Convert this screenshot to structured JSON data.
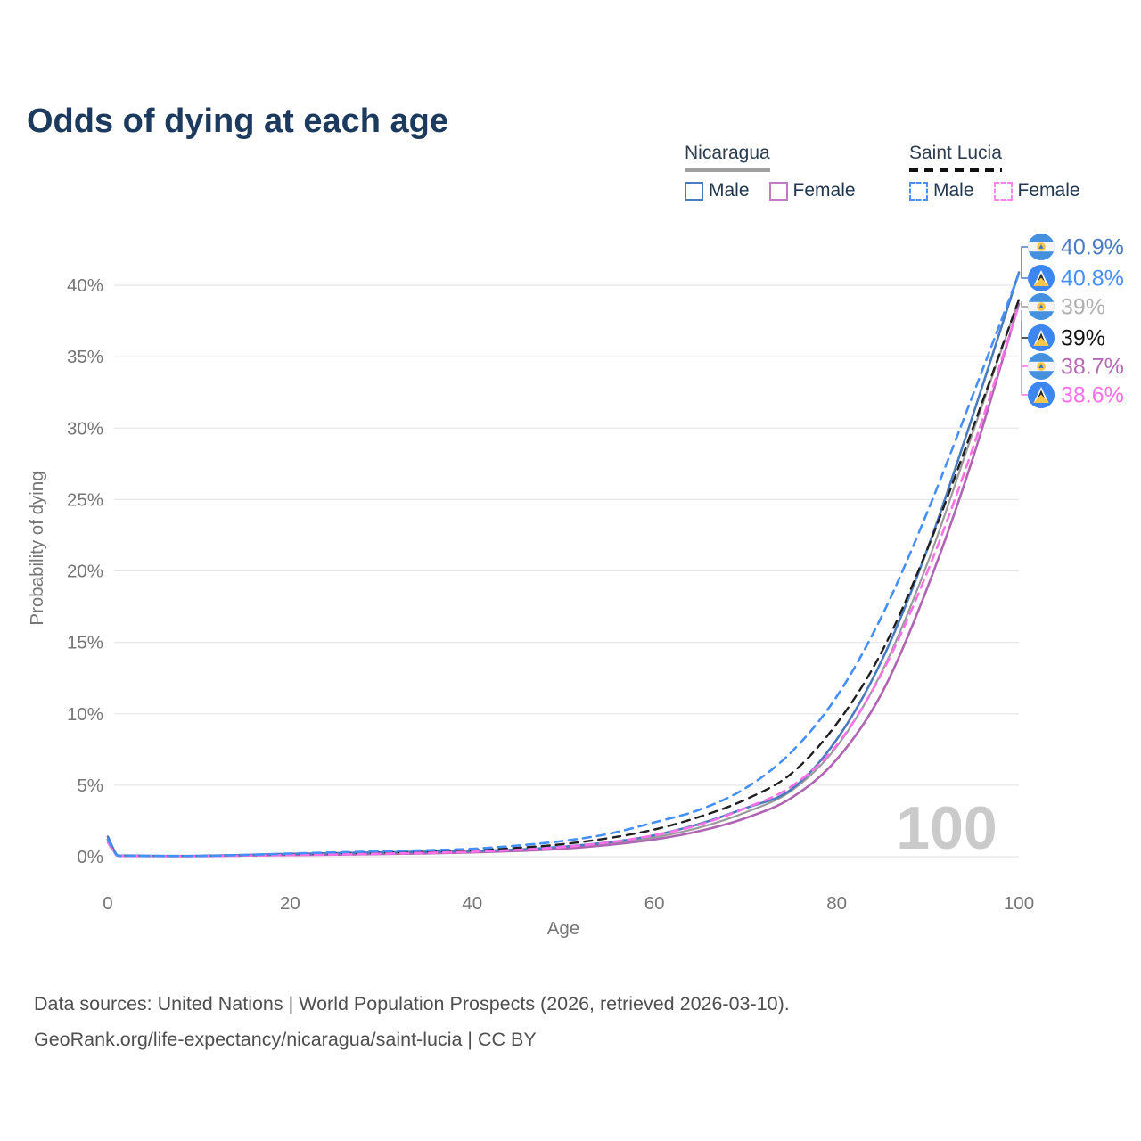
{
  "title": "Odds of dying at each age",
  "legend": {
    "groups": [
      {
        "label": "Nicaragua",
        "underline_style": "solid",
        "underline_color": "#a0a0a0",
        "items": [
          {
            "label": "Male",
            "color": "#4a7bbd",
            "dashed": false
          },
          {
            "label": "Female",
            "color": "#c07cc0",
            "dashed": false
          }
        ]
      },
      {
        "label": "Saint Lucia",
        "underline_style": "dashed",
        "underline_color": "#111111",
        "items": [
          {
            "label": "Male",
            "color": "#4d8ef7",
            "dashed": true
          },
          {
            "label": "Female",
            "color": "#ff85ec",
            "dashed": true
          }
        ]
      }
    ]
  },
  "chart_data": {
    "type": "line",
    "title": "Odds of dying at each age",
    "xlabel": "Age",
    "ylabel": "Probability of dying",
    "xlim": [
      0,
      100
    ],
    "ylim": [
      0,
      43
    ],
    "grid": true,
    "legend_position": "top-right",
    "watermark": "100",
    "x_ticks": [
      {
        "value": 0,
        "label": "0"
      },
      {
        "value": 20,
        "label": "20"
      },
      {
        "value": 40,
        "label": "40"
      },
      {
        "value": 60,
        "label": "60"
      },
      {
        "value": 80,
        "label": "80"
      },
      {
        "value": 100,
        "label": "100"
      }
    ],
    "y_ticks": [
      {
        "value": 0,
        "label": "0%"
      },
      {
        "value": 5,
        "label": "5%"
      },
      {
        "value": 10,
        "label": "10%"
      },
      {
        "value": 15,
        "label": "15%"
      },
      {
        "value": 20,
        "label": "20%"
      },
      {
        "value": 25,
        "label": "25%"
      },
      {
        "value": 30,
        "label": "30%"
      },
      {
        "value": 35,
        "label": "35%"
      },
      {
        "value": 40,
        "label": "40%"
      }
    ],
    "x": [
      0,
      1,
      2,
      5,
      10,
      15,
      20,
      25,
      30,
      35,
      40,
      45,
      50,
      55,
      60,
      65,
      70,
      75,
      80,
      85,
      90,
      95,
      100
    ],
    "series": [
      {
        "name": "Nicaragua Total",
        "color": "#9b9b9b",
        "dashed": false,
        "width": 2.2,
        "values": [
          1.3,
          0.11,
          0.07,
          0.05,
          0.05,
          0.1,
          0.15,
          0.19,
          0.24,
          0.29,
          0.35,
          0.45,
          0.62,
          0.9,
          1.35,
          2.05,
          3.1,
          4.6,
          7.7,
          13.0,
          20.6,
          29.8,
          39.0
        ]
      },
      {
        "name": "Nicaragua Female",
        "color": "#b065b2",
        "dashed": false,
        "width": 2.6,
        "values": [
          1.2,
          0.1,
          0.06,
          0.04,
          0.04,
          0.08,
          0.11,
          0.14,
          0.18,
          0.23,
          0.3,
          0.4,
          0.56,
          0.82,
          1.2,
          1.8,
          2.7,
          4.1,
          6.8,
          11.5,
          18.9,
          28.0,
          38.7
        ]
      },
      {
        "name": "Nicaragua Male",
        "color": "#4a7bbd",
        "dashed": false,
        "width": 2.6,
        "values": [
          1.4,
          0.12,
          0.08,
          0.06,
          0.06,
          0.12,
          0.2,
          0.25,
          0.3,
          0.35,
          0.4,
          0.5,
          0.7,
          1.0,
          1.5,
          2.3,
          3.4,
          4.7,
          8.2,
          13.8,
          21.6,
          31.0,
          40.9
        ]
      },
      {
        "name": "Saint Lucia Total",
        "color": "#1f1f1f",
        "dashed": true,
        "width": 2.4,
        "values": [
          1.1,
          0.09,
          0.06,
          0.05,
          0.05,
          0.1,
          0.17,
          0.23,
          0.29,
          0.36,
          0.45,
          0.62,
          0.88,
          1.3,
          1.9,
          2.8,
          4.0,
          5.8,
          9.3,
          14.4,
          21.6,
          30.1,
          39.0
        ]
      },
      {
        "name": "Saint Lucia Female",
        "color": "#ff70e9",
        "dashed": true,
        "width": 2.6,
        "values": [
          1.0,
          0.08,
          0.05,
          0.04,
          0.04,
          0.08,
          0.12,
          0.16,
          0.21,
          0.27,
          0.35,
          0.48,
          0.68,
          1.0,
          1.5,
          2.25,
          3.4,
          4.9,
          7.8,
          12.9,
          20.0,
          28.7,
          38.6
        ]
      },
      {
        "name": "Saint Lucia Male",
        "color": "#4590f7",
        "dashed": true,
        "width": 2.6,
        "values": [
          1.2,
          0.1,
          0.07,
          0.05,
          0.05,
          0.12,
          0.22,
          0.3,
          0.38,
          0.45,
          0.55,
          0.78,
          1.1,
          1.6,
          2.4,
          3.3,
          4.8,
          7.3,
          11.2,
          16.9,
          24.2,
          32.4,
          40.8
        ]
      }
    ],
    "end_labels": [
      {
        "text": "40.9%",
        "color": "#4a7cc2",
        "flag": "nicaragua",
        "series": "Nicaragua Male"
      },
      {
        "text": "40.8%",
        "color": "#4590f7",
        "flag": "saint-lucia",
        "series": "Saint Lucia Male"
      },
      {
        "text": "39%",
        "color": "#b0b0b0",
        "flag": "nicaragua",
        "series": "Nicaragua Total"
      },
      {
        "text": "39%",
        "color": "#141414",
        "flag": "saint-lucia",
        "series": "Saint Lucia Total"
      },
      {
        "text": "38.7%",
        "color": "#b56ab5",
        "flag": "nicaragua",
        "series": "Nicaragua Female"
      },
      {
        "text": "38.6%",
        "color": "#ff70e9",
        "flag": "saint-lucia",
        "series": "Saint Lucia Female"
      }
    ]
  },
  "footer": {
    "line1": "Data sources: United Nations | World Population Prospects (2026, retrieved 2026-03-10).",
    "line2": "GeoRank.org/life-expectancy/nicaragua/saint-lucia | CC BY"
  }
}
